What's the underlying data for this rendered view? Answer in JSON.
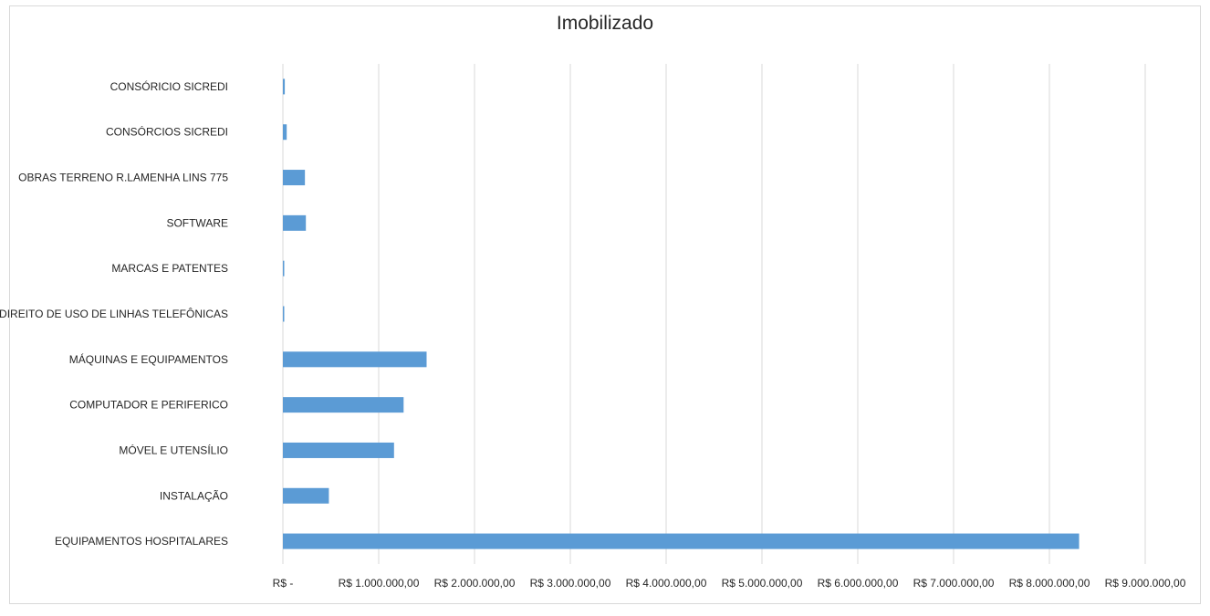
{
  "chart_data": {
    "type": "bar",
    "orientation": "horizontal",
    "title": "Imobilizado",
    "xlabel": "",
    "ylabel": "",
    "categories": [
      "CONSÓRICIO SICREDI",
      "CONSÓRCIOS SICREDI",
      "OBRAS TERRENO R.LAMENHA LINS 775",
      "SOFTWARE",
      "MARCAS E PATENTES",
      "DIREITO DE USO DE LINHAS TELEFÔNICAS",
      "MÁQUINAS E EQUIPAMENTOS",
      "COMPUTADOR E PERIFERICO",
      "MÓVEL E UTENSÍLIO",
      "INSTALAÇÃO",
      "EQUIPAMENTOS HOSPITALARES"
    ],
    "values": [
      20000,
      40000,
      230000,
      240000,
      10000,
      10000,
      1500000,
      1260000,
      1160000,
      480000,
      8310000
    ],
    "xlim": [
      0,
      9000000
    ],
    "ticks": [
      "R$ -",
      "R$ 1.000.000,00",
      "R$ 2.000.000,00",
      "R$ 3.000.000,00",
      "R$ 4.000.000,00",
      "R$ 5.000.000,00",
      "R$ 6.000.000,00",
      "R$ 7.000.000,00",
      "R$ 8.000.000,00",
      "R$ 9.000.000,00"
    ],
    "grid": true,
    "legend": "none",
    "bar_color": "#5b9bd5",
    "grid_color": "#d9d9d9"
  }
}
